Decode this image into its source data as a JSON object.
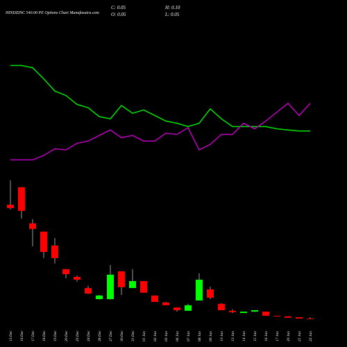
{
  "chart_data": {
    "type": "candlestick",
    "title": "HINDZINC 540.00 PE Options Chart Munafasutra.com",
    "info": {
      "close": "C: 0.05",
      "high": "H: 0.10",
      "open": "O: 0.05",
      "low": "L: 0.05"
    },
    "categories": [
      "13 Dec",
      "16 Dec",
      "17 Dec",
      "18 Dec",
      "19 Dec",
      "20 Dec",
      "23 Dec",
      "24 Dec",
      "26 Dec",
      "27 Dec",
      "30 Dec",
      "31 Dec",
      "01 Jan",
      "02 Jan",
      "03 Jan",
      "06 Jan",
      "07 Jan",
      "08 Jan",
      "09 Jan",
      "10 Jan",
      "13 Jan",
      "14 Jan",
      "15 Jan",
      "16 Jan",
      "17 Jan",
      "20 Jan",
      "21 Jan",
      "22 Jan"
    ],
    "open": [
      4.15,
      4.78,
      3.48,
      3.18,
      2.68,
      1.83,
      1.55,
      1.15,
      0.75,
      0.75,
      1.75,
      1.15,
      1.4,
      0.88,
      0.63,
      0.45,
      0.33,
      0.7,
      1.1,
      0.58,
      0.33,
      0.25,
      0.3,
      0.3,
      0.15,
      0.13,
      0.1,
      0.05
    ],
    "high": [
      5.03,
      4.78,
      3.63,
      3.18,
      2.95,
      1.83,
      1.6,
      1.23,
      0.9,
      1.98,
      1.75,
      1.83,
      1.4,
      0.88,
      0.65,
      0.45,
      0.58,
      1.68,
      1.2,
      0.6,
      0.38,
      0.3,
      0.35,
      0.3,
      0.15,
      0.13,
      0.1,
      0.1
    ],
    "low": [
      3.98,
      3.65,
      2.65,
      2.23,
      2.03,
      1.5,
      1.38,
      0.93,
      0.73,
      0.73,
      0.9,
      1.15,
      0.98,
      0.65,
      0.53,
      0.3,
      0.33,
      0.7,
      0.75,
      0.35,
      0.25,
      0.25,
      0.28,
      0.15,
      0.13,
      0.08,
      0.05,
      0.05
    ],
    "close": [
      4.03,
      3.93,
      3.28,
      2.45,
      2.23,
      1.65,
      1.45,
      0.95,
      0.88,
      1.63,
      1.18,
      1.4,
      0.98,
      0.65,
      0.53,
      0.35,
      0.53,
      1.45,
      0.8,
      0.35,
      0.28,
      0.3,
      0.35,
      0.15,
      0.13,
      0.08,
      0.05,
      0.05
    ],
    "up_color": "#00ff00",
    "down_color": "#ff0000",
    "ylim": [
      0,
      5.25
    ],
    "indicator_ylim": [
      0,
      100
    ],
    "indicators": [
      {
        "color": "#00e600",
        "values": [
          91,
          91,
          89,
          79,
          68,
          64,
          56,
          53,
          45,
          43,
          55,
          48,
          51,
          46,
          41,
          39,
          36,
          39,
          52,
          43,
          36,
          36,
          36,
          36,
          34,
          33,
          32,
          32
        ]
      },
      {
        "color": "#c000c0",
        "values": [
          6,
          6,
          6,
          10,
          16,
          15,
          21,
          23,
          28,
          33,
          26,
          28,
          23,
          23,
          30,
          29,
          35,
          15,
          20,
          29,
          29,
          39,
          34,
          41,
          49,
          57,
          46,
          57
        ]
      }
    ]
  }
}
